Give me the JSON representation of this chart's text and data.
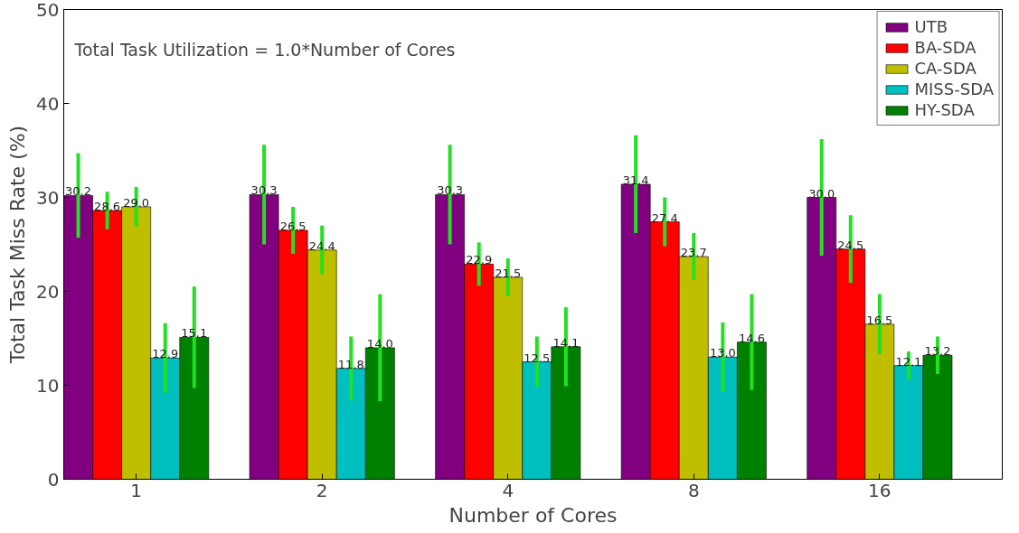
{
  "chart_data": {
    "type": "bar",
    "xlabel": "Number of Cores",
    "ylabel": "Total Task Miss Rate (%)",
    "annotations": [
      "Total Task Utilization = 1.0*Number of Cores"
    ],
    "categories": [
      "1",
      "2",
      "4",
      "8",
      "16"
    ],
    "series": [
      {
        "name": "UTB",
        "color": "#800080",
        "values": [
          30.2,
          30.3,
          30.3,
          31.4,
          30.0
        ],
        "errors": [
          4.5,
          5.3,
          5.3,
          5.2,
          6.2
        ],
        "value_labels": [
          "30.2",
          "30.3",
          "30.3",
          "31.4",
          "30.0"
        ]
      },
      {
        "name": "BA-SDA",
        "color": "#ff0000",
        "values": [
          28.6,
          26.5,
          22.9,
          27.4,
          24.5
        ],
        "errors": [
          2.0,
          2.5,
          2.3,
          2.6,
          3.6
        ],
        "value_labels": [
          "28.6",
          "26.5",
          "22.9",
          "27.4",
          "24.5"
        ]
      },
      {
        "name": "CA-SDA",
        "color": "#bfbf00",
        "values": [
          29.0,
          24.4,
          21.5,
          23.7,
          16.5
        ],
        "errors": [
          2.1,
          2.6,
          2.0,
          2.5,
          3.2
        ],
        "value_labels": [
          "29.0",
          "24.4",
          "21.5",
          "23.7",
          "16.5"
        ]
      },
      {
        "name": "MISS-SDA",
        "color": "#00bfbf",
        "values": [
          12.9,
          11.8,
          12.5,
          13.0,
          12.1
        ],
        "errors": [
          3.7,
          3.4,
          2.7,
          3.7,
          1.5
        ],
        "value_labels": [
          "12.9",
          "11.8",
          "12.5",
          "13.0",
          "12.1"
        ]
      },
      {
        "name": "HY-SDA",
        "color": "#008000",
        "values": [
          15.1,
          14.0,
          14.1,
          14.6,
          13.2
        ],
        "errors": [
          5.4,
          5.7,
          4.2,
          5.1,
          2.0
        ],
        "value_labels": [
          "15.1",
          "14.0",
          "14.1",
          "14.6",
          "13.2"
        ]
      }
    ],
    "ylim": [
      0,
      50
    ],
    "yticks": [
      0,
      10,
      20,
      30,
      40,
      50
    ],
    "legend": "top right"
  }
}
